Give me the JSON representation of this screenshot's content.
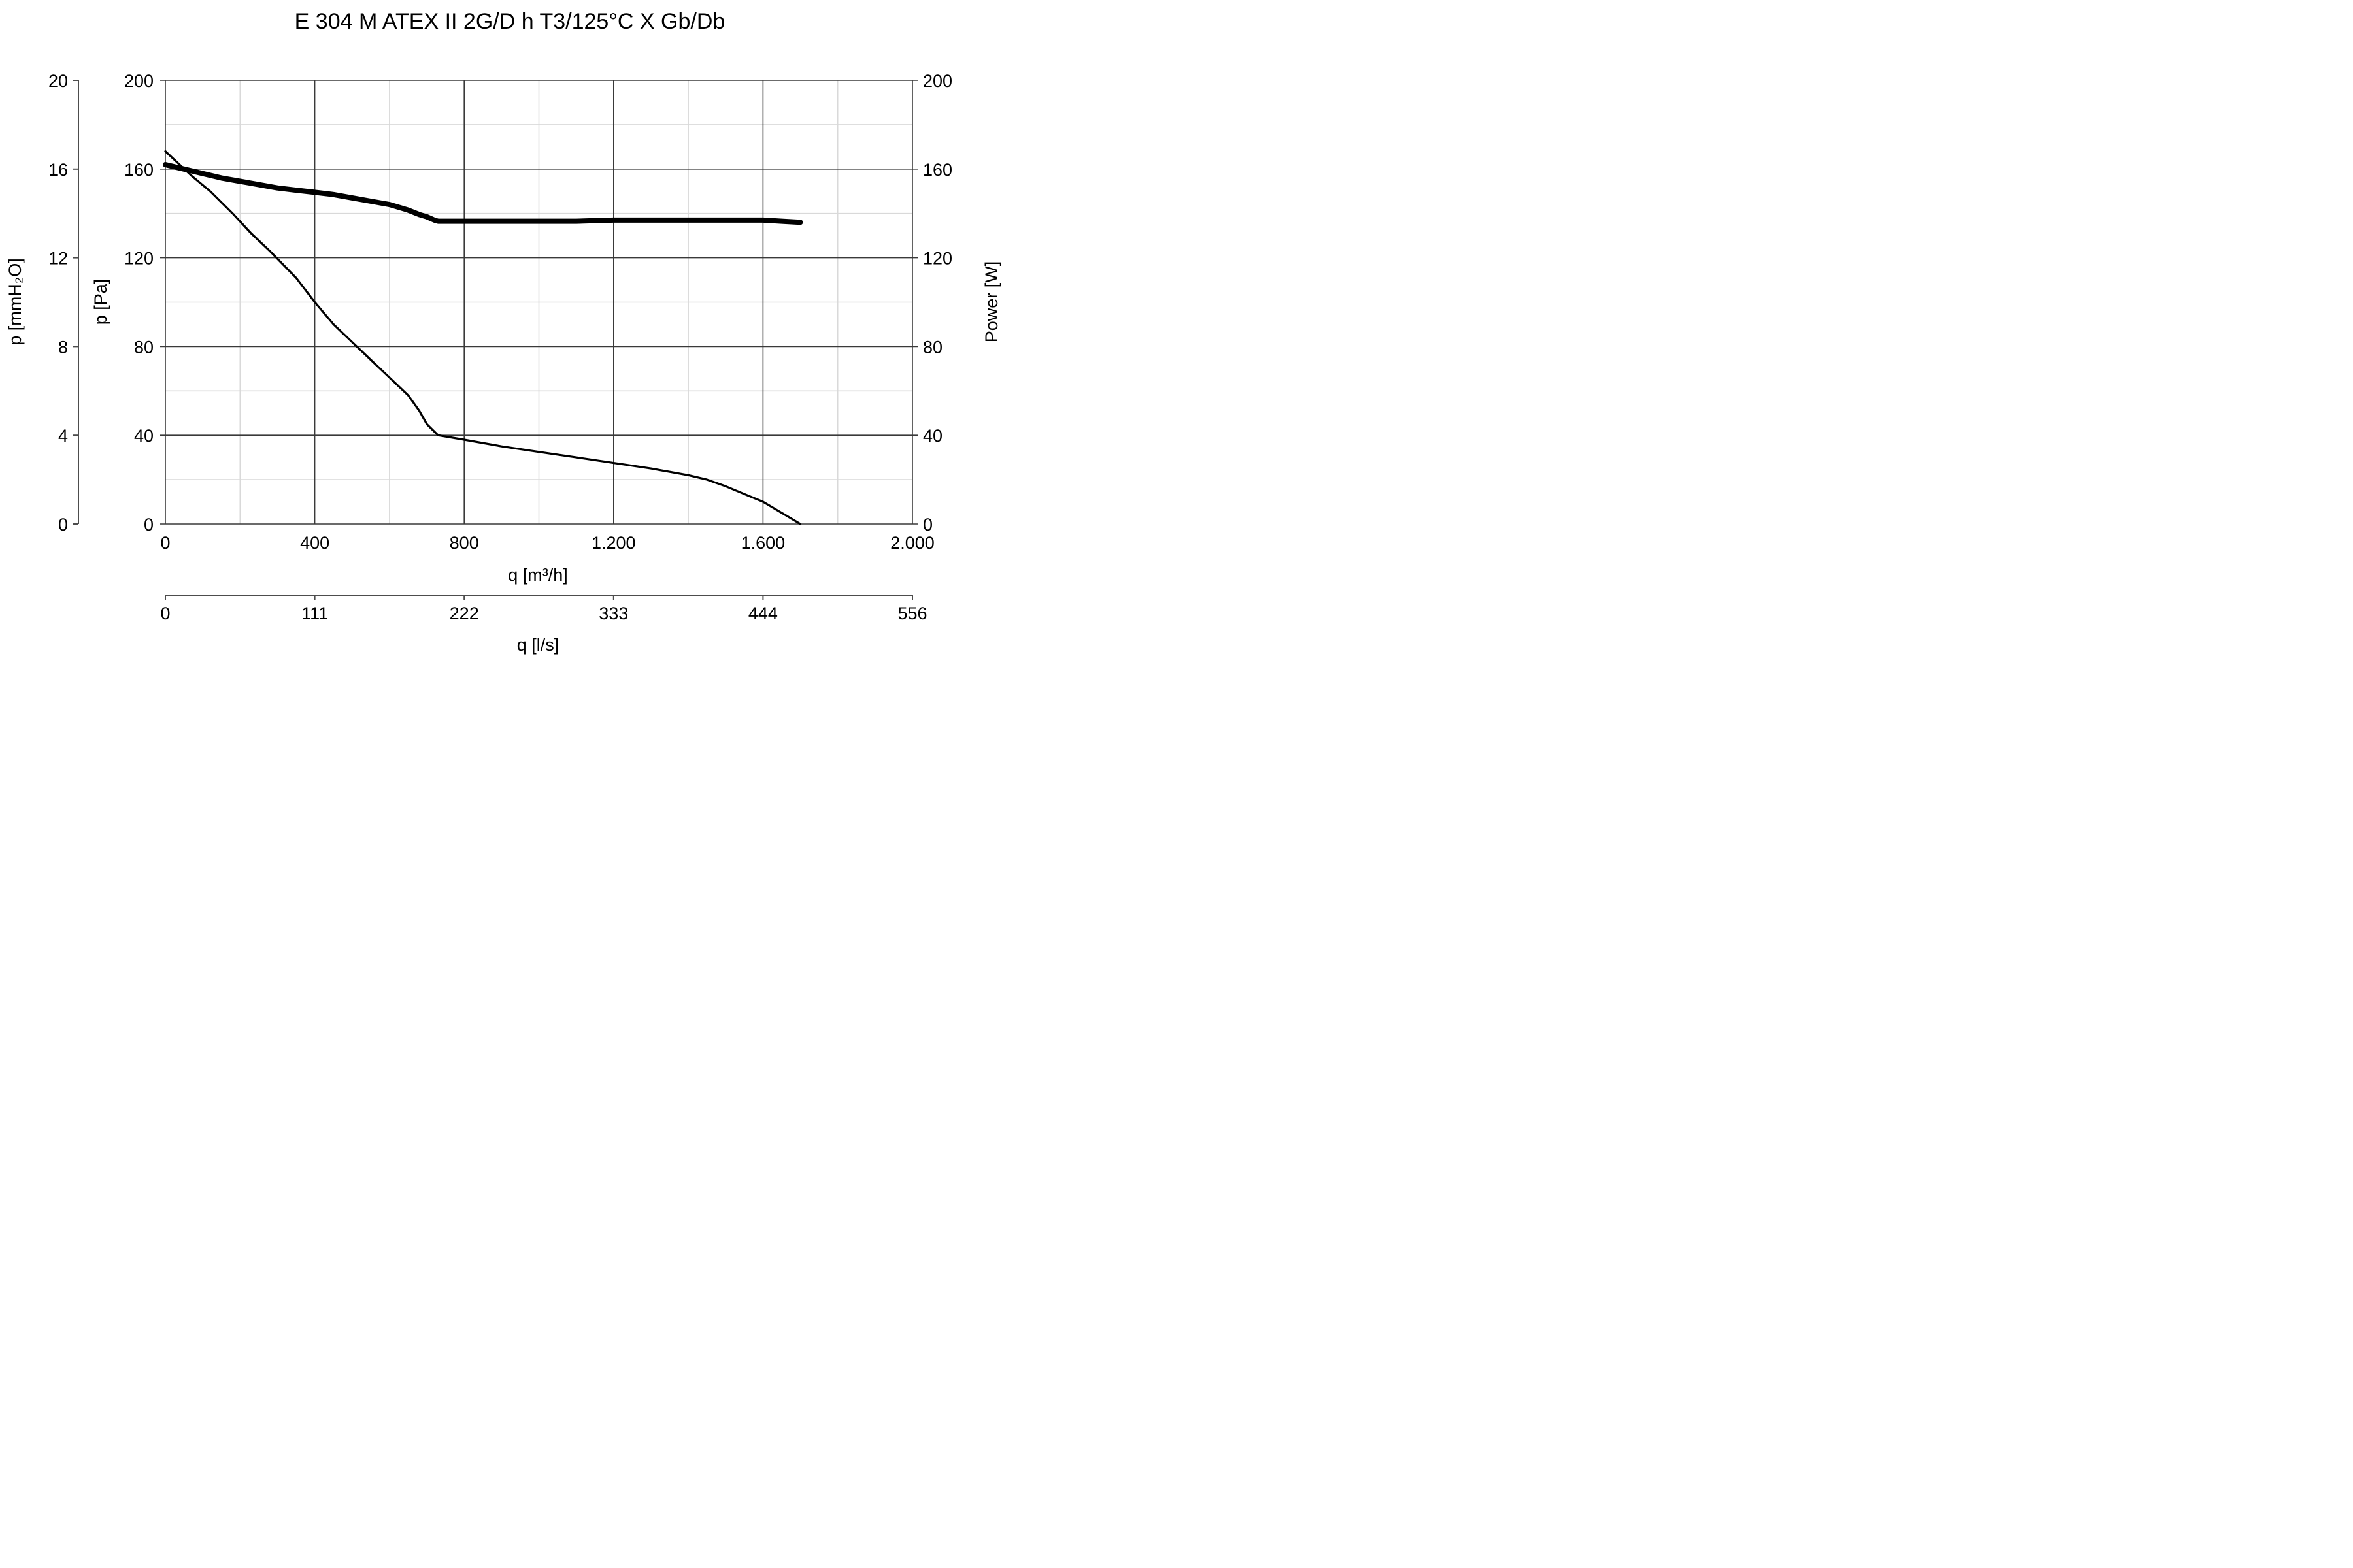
{
  "chart_data": {
    "type": "line",
    "title": "E 304 M ATEX II 2G/D h T3/125°C X Gb/Db",
    "x_axis": {
      "label": "q [m³/h]",
      "range": [
        0,
        2000
      ],
      "ticks": [
        0,
        400,
        800,
        1200,
        1600,
        2000
      ],
      "tick_labels": [
        "0",
        "400",
        "800",
        "1.200",
        "1.600",
        "2.000"
      ],
      "minor_ticks": [
        200,
        600,
        1000,
        1400,
        1800
      ]
    },
    "x2_axis": {
      "label": "q [l/s]",
      "range": [
        0,
        556
      ],
      "tick_labels": [
        "0",
        "111",
        "222",
        "333",
        "444",
        "556"
      ]
    },
    "y_axis_pa": {
      "label": "p [Pa]",
      "range": [
        0,
        200
      ],
      "ticks": [
        0,
        40,
        80,
        120,
        160,
        200
      ],
      "tick_labels": [
        "0",
        "40",
        "80",
        "120",
        "160",
        "200"
      ],
      "minor_ticks": [
        20,
        60,
        100,
        140,
        180
      ]
    },
    "y_axis_mmh2o": {
      "label": "p [mmH₂O]",
      "range": [
        0,
        20
      ],
      "tick_labels": [
        "0",
        "4",
        "8",
        "12",
        "16",
        "20"
      ]
    },
    "y_axis_power": {
      "label": "Power [W]",
      "range": [
        0,
        200
      ],
      "tick_labels": [
        "0",
        "40",
        "80",
        "120",
        "160",
        "200"
      ]
    },
    "grid": true,
    "series": [
      {
        "id": "pressure",
        "axis": "y_axis_pa",
        "color": "#000000",
        "x": [
          0,
          70,
          120,
          180,
          230,
          280,
          350,
          400,
          450,
          500,
          550,
          600,
          650,
          680,
          700,
          730,
          800,
          900,
          1000,
          1100,
          1200,
          1300,
          1400,
          1450,
          1500,
          1550,
          1600,
          1650,
          1700
        ],
        "y": [
          168,
          157,
          150,
          140,
          131,
          123,
          111,
          100,
          90,
          82,
          74,
          66,
          58,
          51,
          45,
          40,
          38,
          35,
          32.5,
          30,
          27.5,
          25,
          22,
          20,
          17,
          13.5,
          10,
          5,
          0
        ]
      },
      {
        "id": "power",
        "axis": "y_axis_power",
        "color": "#000000",
        "x": [
          0,
          50,
          100,
          150,
          200,
          250,
          300,
          350,
          400,
          450,
          500,
          550,
          600,
          650,
          680,
          700,
          720,
          730,
          800,
          900,
          1000,
          1100,
          1200,
          1300,
          1400,
          1500,
          1600,
          1650,
          1700
        ],
        "y": [
          162,
          160,
          158,
          156,
          154.5,
          153,
          151.5,
          150.5,
          149.5,
          148.5,
          147,
          145.5,
          144,
          141.5,
          139.5,
          138.5,
          137,
          136.5,
          136.5,
          136.5,
          136.5,
          136.5,
          137,
          137,
          137,
          137,
          137,
          136.5,
          136
        ]
      }
    ]
  }
}
